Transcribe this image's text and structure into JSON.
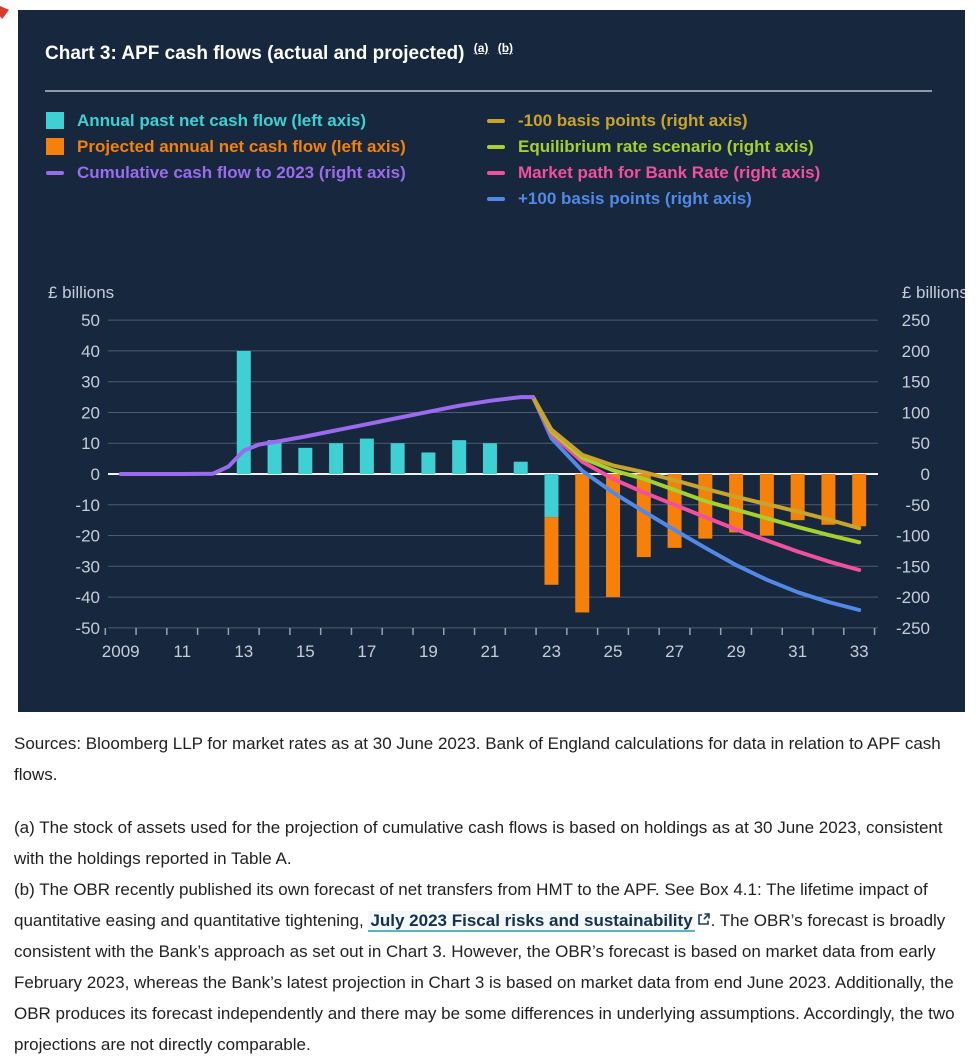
{
  "panel": {
    "title": "Chart 3: APF cash flows (actual and projected)",
    "sup_a": "(a)",
    "sup_b": "(b)",
    "colors": {
      "background": "#17273d",
      "title_text": "#ffffff",
      "separator": "#8f99a8"
    },
    "legend": {
      "left": [
        {
          "label": "Annual past net cash flow (left axis)",
          "color": "#3fd0d4",
          "marker": "square"
        },
        {
          "label": "Projected annual net cash flow (left axis)",
          "color": "#f5800a",
          "marker": "square"
        },
        {
          "label": "Cumulative cash flow to 2023 (right axis)",
          "color": "#9a6ced",
          "marker": "dash"
        }
      ],
      "right": [
        {
          "label": "-100 basis points (right axis)",
          "color": "#c9a42d",
          "marker": "dash"
        },
        {
          "label": "Equilibrium rate scenario (right axis)",
          "color": "#a6cf2f",
          "marker": "dash"
        },
        {
          "label": "Market path for Bank Rate (right axis)",
          "color": "#f0509e",
          "marker": "dash"
        },
        {
          "label": "+100 basis points (right axis)",
          "color": "#5289e6",
          "marker": "dash"
        }
      ]
    }
  },
  "chart_data": {
    "type": "bar+line",
    "title": "APF cash flows (actual and projected)",
    "left_axis": {
      "title": "£ billions",
      "ticks": [
        50,
        40,
        30,
        20,
        10,
        0,
        -10,
        -20,
        -30,
        -40,
        -50
      ],
      "range": [
        -50,
        50
      ]
    },
    "right_axis": {
      "title": "£ billions",
      "ticks": [
        250,
        200,
        150,
        100,
        50,
        0,
        -50,
        -100,
        -150,
        -200,
        -250
      ],
      "range": [
        -250,
        250
      ]
    },
    "x_label_years": [
      2009,
      2011,
      2013,
      2015,
      2017,
      2019,
      2021,
      2023,
      2025,
      2027,
      2029,
      2031,
      2033
    ],
    "x_labels": [
      "2009",
      "11",
      "13",
      "15",
      "17",
      "19",
      "21",
      "23",
      "25",
      "27",
      "29",
      "31",
      "33"
    ],
    "x_range": [
      2008.5,
      2034
    ],
    "grid": "horizontal-only",
    "legend_position": "top",
    "style": {
      "axis_text": "#c6cdd8",
      "gridline": "#7e889b",
      "zero_line": "#eef2f7",
      "tick": "#98a1b0"
    },
    "bars": [
      {
        "name": "Annual past net cash flow",
        "axis": "left",
        "color": "#3fd0d4",
        "segments": [
          [
            2013,
            0,
            40
          ],
          [
            2014,
            0,
            11
          ],
          [
            2015,
            0,
            8.5
          ],
          [
            2016,
            0,
            10
          ],
          [
            2017,
            0,
            11.5
          ],
          [
            2018,
            0,
            10
          ],
          [
            2019,
            0,
            7
          ],
          [
            2020,
            0,
            11
          ],
          [
            2021,
            0,
            10
          ],
          [
            2022,
            0,
            4
          ],
          [
            2023,
            0,
            -14
          ]
        ]
      },
      {
        "name": "Projected annual net cash flow",
        "axis": "left",
        "color": "#f5800a",
        "segments": [
          [
            2023,
            -14,
            -36
          ],
          [
            2024,
            0,
            -45
          ],
          [
            2025,
            0,
            -40
          ],
          [
            2026,
            0,
            -27
          ],
          [
            2027,
            0,
            -24
          ],
          [
            2028,
            0,
            -21
          ],
          [
            2029,
            0,
            -19
          ],
          [
            2030,
            0,
            -20
          ],
          [
            2031,
            0,
            -15
          ],
          [
            2032,
            0,
            -16.5
          ],
          [
            2033,
            0,
            -17
          ]
        ]
      }
    ],
    "series": [
      {
        "name": "+100 basis points",
        "axis": "right",
        "color": "#5289e6",
        "points": [
          [
            2022.4,
            125
          ],
          [
            2023,
            58
          ],
          [
            2024,
            5
          ],
          [
            2025,
            -30
          ],
          [
            2026,
            -61
          ],
          [
            2027,
            -91
          ],
          [
            2028,
            -120
          ],
          [
            2029,
            -148
          ],
          [
            2030,
            -172
          ],
          [
            2031,
            -192
          ],
          [
            2032,
            -208
          ],
          [
            2033,
            -221
          ]
        ]
      },
      {
        "name": "Market path for Bank Rate",
        "axis": "right",
        "color": "#f0509e",
        "points": [
          [
            2022.4,
            125
          ],
          [
            2023,
            65
          ],
          [
            2024,
            20
          ],
          [
            2025,
            -8
          ],
          [
            2026,
            -30
          ],
          [
            2027,
            -50
          ],
          [
            2028,
            -70
          ],
          [
            2029,
            -90
          ],
          [
            2030,
            -108
          ],
          [
            2031,
            -126
          ],
          [
            2032,
            -142
          ],
          [
            2033,
            -156
          ]
        ]
      },
      {
        "name": "Equilibrium rate scenario",
        "axis": "right",
        "color": "#a6cf2f",
        "points": [
          [
            2022.4,
            125
          ],
          [
            2023,
            69
          ],
          [
            2024,
            26
          ],
          [
            2025,
            6
          ],
          [
            2026,
            -8
          ],
          [
            2027,
            -26
          ],
          [
            2028,
            -44
          ],
          [
            2029,
            -58
          ],
          [
            2030,
            -72
          ],
          [
            2031,
            -86
          ],
          [
            2032,
            -99
          ],
          [
            2033,
            -111
          ]
        ]
      },
      {
        "name": "-100 basis points",
        "axis": "right",
        "color": "#c9a42d",
        "points": [
          [
            2022.4,
            125
          ],
          [
            2023,
            72
          ],
          [
            2024,
            31
          ],
          [
            2025,
            14
          ],
          [
            2026,
            3
          ],
          [
            2027,
            -10
          ],
          [
            2028,
            -24
          ],
          [
            2029,
            -37
          ],
          [
            2030,
            -49
          ],
          [
            2031,
            -61
          ],
          [
            2032,
            -74
          ],
          [
            2033,
            -88
          ]
        ]
      },
      {
        "name": "Cumulative cash flow to 2023",
        "axis": "right",
        "color": "#9a6ced",
        "points": [
          [
            2009,
            0
          ],
          [
            2010,
            0
          ],
          [
            2011,
            0
          ],
          [
            2012,
            0.5
          ],
          [
            2012.5,
            12
          ],
          [
            2013,
            38
          ],
          [
            2013.5,
            48
          ],
          [
            2014,
            52
          ],
          [
            2015,
            61
          ],
          [
            2016,
            71
          ],
          [
            2017,
            81
          ],
          [
            2018,
            91
          ],
          [
            2019,
            101
          ],
          [
            2020,
            111
          ],
          [
            2021,
            119
          ],
          [
            2022,
            125
          ],
          [
            2022.4,
            125
          ]
        ]
      }
    ]
  },
  "footer": {
    "sources": "Sources: Bloomberg LLP for market rates as at 30 June 2023. Bank of England calculations for data in relation to APF cash flows.",
    "footnote_a": "(a) The stock of assets used for the projection of cumulative cash flows is based on holdings as at 30 June 2023, consistent with the holdings reported in Table A.",
    "footnote_b_pre": "(b) The OBR recently published its own forecast of net transfers from HMT to the APF. See Box 4.1: The lifetime impact of quantitative easing and quantitative tightening, ",
    "footnote_b_link": "July 2023 Fiscal risks and sustainability",
    "footnote_b_post": ". The OBR’s forecast is broadly consistent with the Bank’s approach as set out in Chart 3. However, the OBR’s forecast is based on market data from early February 2023, whereas the Bank’s latest projection in Chart 3 is based on market data from end June 2023. Additionally, the OBR produces its forecast independently and there may be some differences in underlying assumptions. Accordingly, the two projections are not directly comparable."
  }
}
